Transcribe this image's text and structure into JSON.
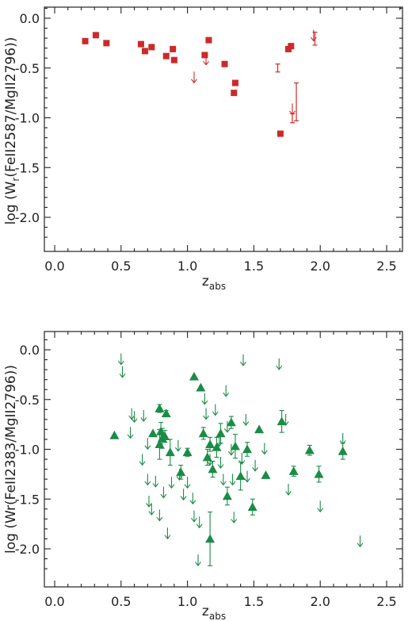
{
  "figure": {
    "top_panel": {
      "ylabel_main": "log (W",
      "ylabel_sub": "r",
      "ylabel_tail": "(FeII2587/MgII2796))",
      "xlabel_main": "z",
      "xlabel_sub": "abs"
    },
    "bottom_panel": {
      "ylabel_text": "log (Wr(FeII2383/MgII2796))",
      "xlabel_main": "z",
      "xlabel_sub": "abs"
    }
  },
  "chart_data": [
    {
      "type": "scatter",
      "title": "",
      "xlabel": "z_abs",
      "ylabel": "log (W_r(FeII2587/MgII2796))",
      "xlim": [
        0.0,
        2.75
      ],
      "ylim": [
        -2.3,
        0.2
      ],
      "x_ticks": [
        "0.0",
        "0.5",
        "1.0",
        "1.5",
        "2.0",
        "2.5"
      ],
      "y_ticks": [
        "0.0",
        "-0.5",
        "-1.0",
        "-1.5",
        "-2.0"
      ],
      "grid": false,
      "color": "#cc2a2a",
      "marker": "square",
      "points": [
        {
          "x": 0.23,
          "y": -0.23
        },
        {
          "x": 0.31,
          "y": -0.17
        },
        {
          "x": 0.39,
          "y": -0.25
        },
        {
          "x": 0.65,
          "y": -0.26
        },
        {
          "x": 0.68,
          "y": -0.33
        },
        {
          "x": 0.73,
          "y": -0.29
        },
        {
          "x": 0.84,
          "y": -0.38
        },
        {
          "x": 0.89,
          "y": -0.31
        },
        {
          "x": 0.9,
          "y": -0.42
        },
        {
          "x": 1.13,
          "y": -0.37
        },
        {
          "x": 1.16,
          "y": -0.22
        },
        {
          "x": 1.28,
          "y": -0.46
        },
        {
          "x": 1.36,
          "y": -0.65
        },
        {
          "x": 1.35,
          "y": -0.75
        },
        {
          "x": 1.76,
          "y": -0.31
        },
        {
          "x": 1.78,
          "y": -0.28
        },
        {
          "x": 1.7,
          "y": -1.16
        }
      ],
      "upper_limits": [
        {
          "x": 1.05,
          "y": -0.6
        },
        {
          "x": 1.14,
          "y": -0.42
        },
        {
          "x": 1.79,
          "y": -0.92
        },
        {
          "x": 1.95,
          "y": -0.18
        }
      ],
      "error_bars": [
        {
          "x": 1.68,
          "ylow": -0.54,
          "yhigh": -0.46
        },
        {
          "x": 1.79,
          "ylow": -1.05,
          "yhigh": -0.96
        },
        {
          "x": 1.82,
          "ylow": -1.03,
          "yhigh": -0.65
        },
        {
          "x": 1.96,
          "ylow": -0.27,
          "yhigh": -0.14
        }
      ]
    },
    {
      "type": "scatter",
      "title": "",
      "xlabel": "z_abs",
      "ylabel": "log (Wr(FeII2383/MgII2796))",
      "xlim": [
        0.0,
        2.75
      ],
      "ylim": [
        -2.3,
        0.2
      ],
      "x_ticks": [
        "0.0",
        "0.5",
        "1.0",
        "1.5",
        "2.0",
        "2.5"
      ],
      "y_ticks": [
        "0.0",
        "-0.5",
        "-1.0",
        "-1.5",
        "-2.0"
      ],
      "grid": false,
      "color": "#1a8c46",
      "marker": "triangle",
      "points": [
        {
          "x": 0.45,
          "y": -0.86,
          "err": 0.0
        },
        {
          "x": 0.74,
          "y": -0.84,
          "err": 0.0
        },
        {
          "x": 0.79,
          "y": -0.59,
          "err": 0.04
        },
        {
          "x": 0.8,
          "y": -0.82,
          "err": 0.09
        },
        {
          "x": 0.79,
          "y": -0.95,
          "err": 0.15
        },
        {
          "x": 0.81,
          "y": -0.89,
          "err": 0.1
        },
        {
          "x": 0.83,
          "y": -0.87,
          "err": 0.06
        },
        {
          "x": 0.84,
          "y": -0.64,
          "err": 0.03
        },
        {
          "x": 0.87,
          "y": -1.03,
          "err": 0.13
        },
        {
          "x": 0.95,
          "y": -1.23,
          "err": 0.07
        },
        {
          "x": 1.0,
          "y": -1.03,
          "err": 0.04
        },
        {
          "x": 1.05,
          "y": -0.27,
          "err": 0.0
        },
        {
          "x": 1.1,
          "y": -0.38,
          "err": 0.0
        },
        {
          "x": 1.12,
          "y": -0.84,
          "err": 0.06
        },
        {
          "x": 1.15,
          "y": -1.08,
          "err": 0.08
        },
        {
          "x": 1.17,
          "y": -0.95,
          "err": 0.07
        },
        {
          "x": 1.19,
          "y": -1.2,
          "err": 0.08
        },
        {
          "x": 1.22,
          "y": -0.98,
          "err": 0.1
        },
        {
          "x": 1.17,
          "y": -1.9,
          "err": 0.27
        },
        {
          "x": 1.25,
          "y": -0.84,
          "err": 0.1
        },
        {
          "x": 1.3,
          "y": -1.47,
          "err": 0.09
        },
        {
          "x": 1.33,
          "y": -0.73,
          "err": 0.06
        },
        {
          "x": 1.36,
          "y": -0.97,
          "err": 0.12
        },
        {
          "x": 1.4,
          "y": -1.27,
          "err": 0.14
        },
        {
          "x": 1.45,
          "y": -1.0,
          "err": 0.07
        },
        {
          "x": 1.49,
          "y": -1.58,
          "err": 0.08
        },
        {
          "x": 1.54,
          "y": -0.8,
          "err": 0.0
        },
        {
          "x": 1.59,
          "y": -1.26,
          "err": 0.0
        },
        {
          "x": 1.71,
          "y": -0.72,
          "err": 0.11
        },
        {
          "x": 1.8,
          "y": -1.22,
          "err": 0.05
        },
        {
          "x": 1.92,
          "y": -1.01,
          "err": 0.05
        },
        {
          "x": 1.99,
          "y": -1.25,
          "err": 0.08
        },
        {
          "x": 2.17,
          "y": -1.02,
          "err": 0.08
        }
      ],
      "upper_limits": [
        {
          "x": 0.5,
          "y": -0.1
        },
        {
          "x": 0.51,
          "y": -0.23
        },
        {
          "x": 0.58,
          "y": -0.65
        },
        {
          "x": 0.6,
          "y": -0.68
        },
        {
          "x": 0.57,
          "y": -0.84
        },
        {
          "x": 0.67,
          "y": -0.67
        },
        {
          "x": 0.66,
          "y": -1.11
        },
        {
          "x": 0.7,
          "y": -0.95
        },
        {
          "x": 0.7,
          "y": -1.31
        },
        {
          "x": 0.71,
          "y": -1.53
        },
        {
          "x": 0.73,
          "y": -1.61
        },
        {
          "x": 0.76,
          "y": -1.33
        },
        {
          "x": 0.79,
          "y": -1.67
        },
        {
          "x": 0.82,
          "y": -1.44
        },
        {
          "x": 0.85,
          "y": -1.85
        },
        {
          "x": 0.88,
          "y": -1.34
        },
        {
          "x": 0.93,
          "y": -0.97
        },
        {
          "x": 0.94,
          "y": -1.26
        },
        {
          "x": 0.97,
          "y": -1.46
        },
        {
          "x": 1.0,
          "y": -1.34
        },
        {
          "x": 1.04,
          "y": -1.5
        },
        {
          "x": 1.05,
          "y": -1.68
        },
        {
          "x": 1.09,
          "y": -1.74
        },
        {
          "x": 1.13,
          "y": -0.5
        },
        {
          "x": 1.14,
          "y": -0.65
        },
        {
          "x": 1.17,
          "y": -1.11
        },
        {
          "x": 1.21,
          "y": -0.61
        },
        {
          "x": 1.24,
          "y": -0.92
        },
        {
          "x": 1.25,
          "y": -1.14
        },
        {
          "x": 1.27,
          "y": -1.31
        },
        {
          "x": 1.08,
          "y": -2.12
        },
        {
          "x": 1.29,
          "y": -0.42
        },
        {
          "x": 1.3,
          "y": -0.78
        },
        {
          "x": 1.33,
          "y": -1.01
        },
        {
          "x": 1.34,
          "y": -1.31
        },
        {
          "x": 1.35,
          "y": -1.69
        },
        {
          "x": 1.41,
          "y": -1.1
        },
        {
          "x": 1.42,
          "y": -0.11
        },
        {
          "x": 1.44,
          "y": -0.71
        },
        {
          "x": 1.45,
          "y": -1.28
        },
        {
          "x": 1.51,
          "y": -1.17
        },
        {
          "x": 1.58,
          "y": -1.0
        },
        {
          "x": 1.69,
          "y": -0.15
        },
        {
          "x": 1.74,
          "y": -0.71
        },
        {
          "x": 1.76,
          "y": -1.41
        },
        {
          "x": 2.0,
          "y": -1.58
        },
        {
          "x": 2.17,
          "y": -0.9
        },
        {
          "x": 2.3,
          "y": -1.93
        }
      ]
    }
  ]
}
